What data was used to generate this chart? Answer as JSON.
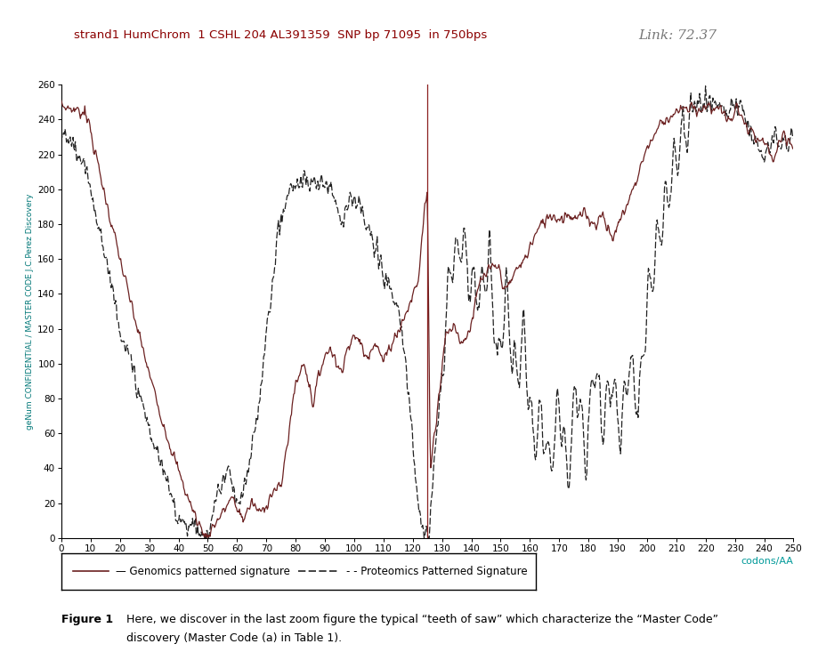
{
  "title": "strand1 HumChrom  1 CSHL 204 AL391359  SNP bp 71095  in 750bps",
  "link_text": "Link: 72.37",
  "xlabel": "codons/AA",
  "ylabel": "geNum CONFIDENTIAL / MASTER CODE J.C.Perez Discovery",
  "title_color": "#8B0000",
  "link_color": "#777777",
  "xlabel_color": "#009999",
  "ylabel_color": "#007777",
  "solid_color": "#6B2020",
  "dashed_color": "#222222",
  "vline_color": "#8B2020",
  "vline_x": 125,
  "xlim": [
    0,
    250
  ],
  "ylim": [
    0,
    260
  ],
  "xticks": [
    0,
    10,
    20,
    30,
    40,
    50,
    60,
    70,
    80,
    90,
    100,
    110,
    120,
    130,
    140,
    150,
    160,
    170,
    180,
    190,
    200,
    210,
    220,
    230,
    240,
    250
  ],
  "yticks": [
    0,
    20,
    40,
    60,
    80,
    100,
    120,
    140,
    160,
    180,
    200,
    220,
    240,
    260
  ],
  "legend_solid": "— Genomics patterned signature",
  "legend_dashed": "- - Proteomics Patterned Signature",
  "caption_bold": "Figure 1",
  "caption_text": "Here, we discover in the last zoom figure the typical “teeth of saw” which characterize the “Master Code”\ndiscovery (Master Code (a) in Table 1).",
  "background_color": "#ffffff"
}
